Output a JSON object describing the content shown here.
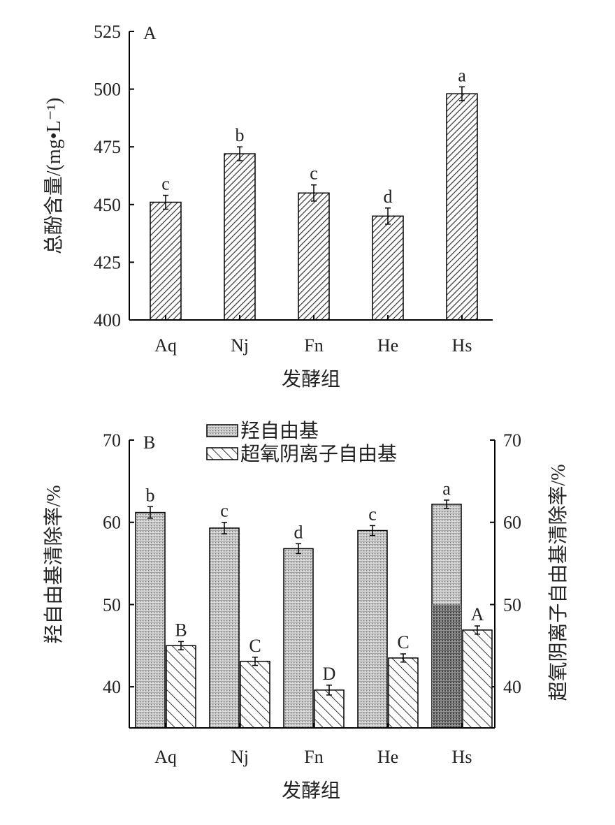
{
  "chart_data": [
    {
      "panel_label": "A",
      "type": "bar",
      "categories": [
        "Aq",
        "Nj",
        "Fn",
        "He",
        "Hs"
      ],
      "xlabel": "发酵组",
      "ylabel": "总酚含量/(mg•L⁻¹)",
      "ylim": [
        400,
        525
      ],
      "yticks": [
        "400",
        "425",
        "450",
        "475",
        "500",
        "525"
      ],
      "series": [
        {
          "values": [
            451,
            472,
            455,
            445,
            498
          ],
          "errors": [
            3,
            3,
            3.5,
            3.5,
            3
          ],
          "letters": [
            "c",
            "b",
            "c",
            "d",
            "a"
          ]
        }
      ]
    },
    {
      "panel_label": "B",
      "type": "bar",
      "categories": [
        "Aq",
        "Nj",
        "Fn",
        "He",
        "Hs"
      ],
      "xlabel": "发酵组",
      "ylabel_left": "羟自由基清除率/%",
      "ylabel_right": "超氧阴离子自由基清除率/%",
      "ylim": [
        35,
        70
      ],
      "yticks": [
        "40",
        "50",
        "60",
        "70"
      ],
      "legend_position": "top",
      "series": [
        {
          "name": "羟自由基",
          "values": [
            61.2,
            59.3,
            56.8,
            59.0,
            62.2
          ],
          "errors": [
            0.7,
            0.7,
            0.6,
            0.6,
            0.5
          ],
          "letters": [
            "b",
            "c",
            "d",
            "c",
            "a"
          ]
        },
        {
          "name": "超氧阴离子自由基",
          "values": [
            45.0,
            43.1,
            39.6,
            43.5,
            46.9
          ],
          "errors": [
            0.5,
            0.5,
            0.6,
            0.5,
            0.5
          ],
          "letters": [
            "B",
            "C",
            "D",
            "C",
            "A"
          ]
        }
      ]
    }
  ]
}
